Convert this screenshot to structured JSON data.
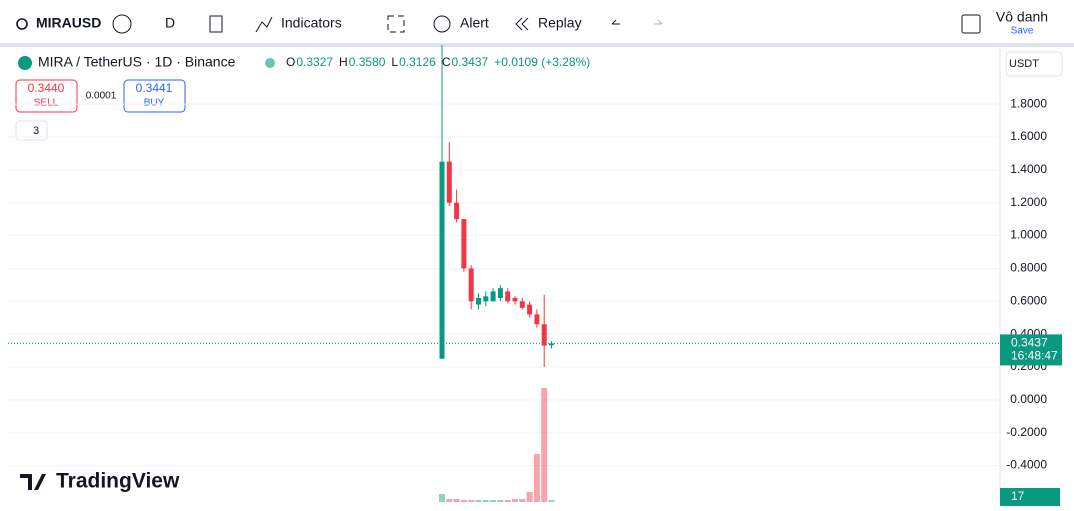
{
  "toolbar": {
    "symbol": "MIRAUSD",
    "interval": "D",
    "indicators": "Indicators",
    "alert": "Alert",
    "replay": "Replay",
    "layout_name": "Vô danh",
    "save": "Save"
  },
  "legend": {
    "title": "MIRA / TetherUS · 1D · Binance",
    "open_label": "O",
    "open": "0.3327",
    "high_label": "H",
    "high": "0.3580",
    "low_label": "L",
    "low": "0.3126",
    "close_label": "C",
    "close": "0.3437",
    "change": "+0.0109 (+3.28%)"
  },
  "trade": {
    "sell_price": "0.3440",
    "sell": "SELL",
    "spread": "0.0001",
    "buy_price": "0.3441",
    "buy": "BUY"
  },
  "indicator_count": "3",
  "currency": "USDT",
  "brand": "TradingView",
  "chart_data": {
    "type": "candlestick",
    "open": [
      0.25,
      1.45,
      1.2,
      1.1,
      0.8,
      0.58,
      0.6,
      0.6,
      0.62,
      0.66,
      0.62,
      0.6,
      0.58,
      0.52,
      0.46,
      0.3327
    ],
    "high": [
      2.16,
      1.57,
      1.28,
      1.1,
      0.82,
      0.65,
      0.66,
      0.68,
      0.7,
      0.68,
      0.63,
      0.62,
      0.6,
      0.55,
      0.64,
      0.358
    ],
    "low": [
      0.25,
      1.18,
      1.08,
      0.78,
      0.55,
      0.55,
      0.57,
      0.6,
      0.6,
      0.59,
      0.58,
      0.55,
      0.5,
      0.44,
      0.2,
      0.3126
    ],
    "close": [
      1.45,
      1.2,
      1.1,
      0.8,
      0.6,
      0.62,
      0.63,
      0.66,
      0.68,
      0.6,
      0.6,
      0.56,
      0.52,
      0.46,
      0.33,
      0.3437
    ],
    "volume": [
      8,
      3,
      3,
      2,
      2,
      2,
      2,
      2,
      2,
      2,
      3,
      3,
      10,
      48,
      114,
      2
    ],
    "up_color": "#089981",
    "down_color": "#f23645",
    "ylim": [
      -0.64,
      2.16
    ],
    "yticks": [
      {
        "value": -0.4,
        "label": "-0.4000"
      },
      {
        "value": -0.2,
        "label": "-0.2000"
      },
      {
        "value": 0,
        "label": "0.0000"
      },
      {
        "value": 0.2,
        "label": "0.2000"
      },
      {
        "value": 0.4,
        "label": "0.4000"
      },
      {
        "value": 0.6,
        "label": "0.6000"
      },
      {
        "value": 0.8,
        "label": "0.8000"
      },
      {
        "value": 1,
        "label": "1.0000"
      },
      {
        "value": 1.2,
        "label": "1.2000"
      },
      {
        "value": 1.4,
        "label": "1.4000"
      },
      {
        "value": 1.6,
        "label": "1.6000"
      },
      {
        "value": 1.8,
        "label": "1.8000"
      }
    ],
    "last_price": 0.3437,
    "countdown": "16:48:47",
    "volume_label": "17"
  }
}
